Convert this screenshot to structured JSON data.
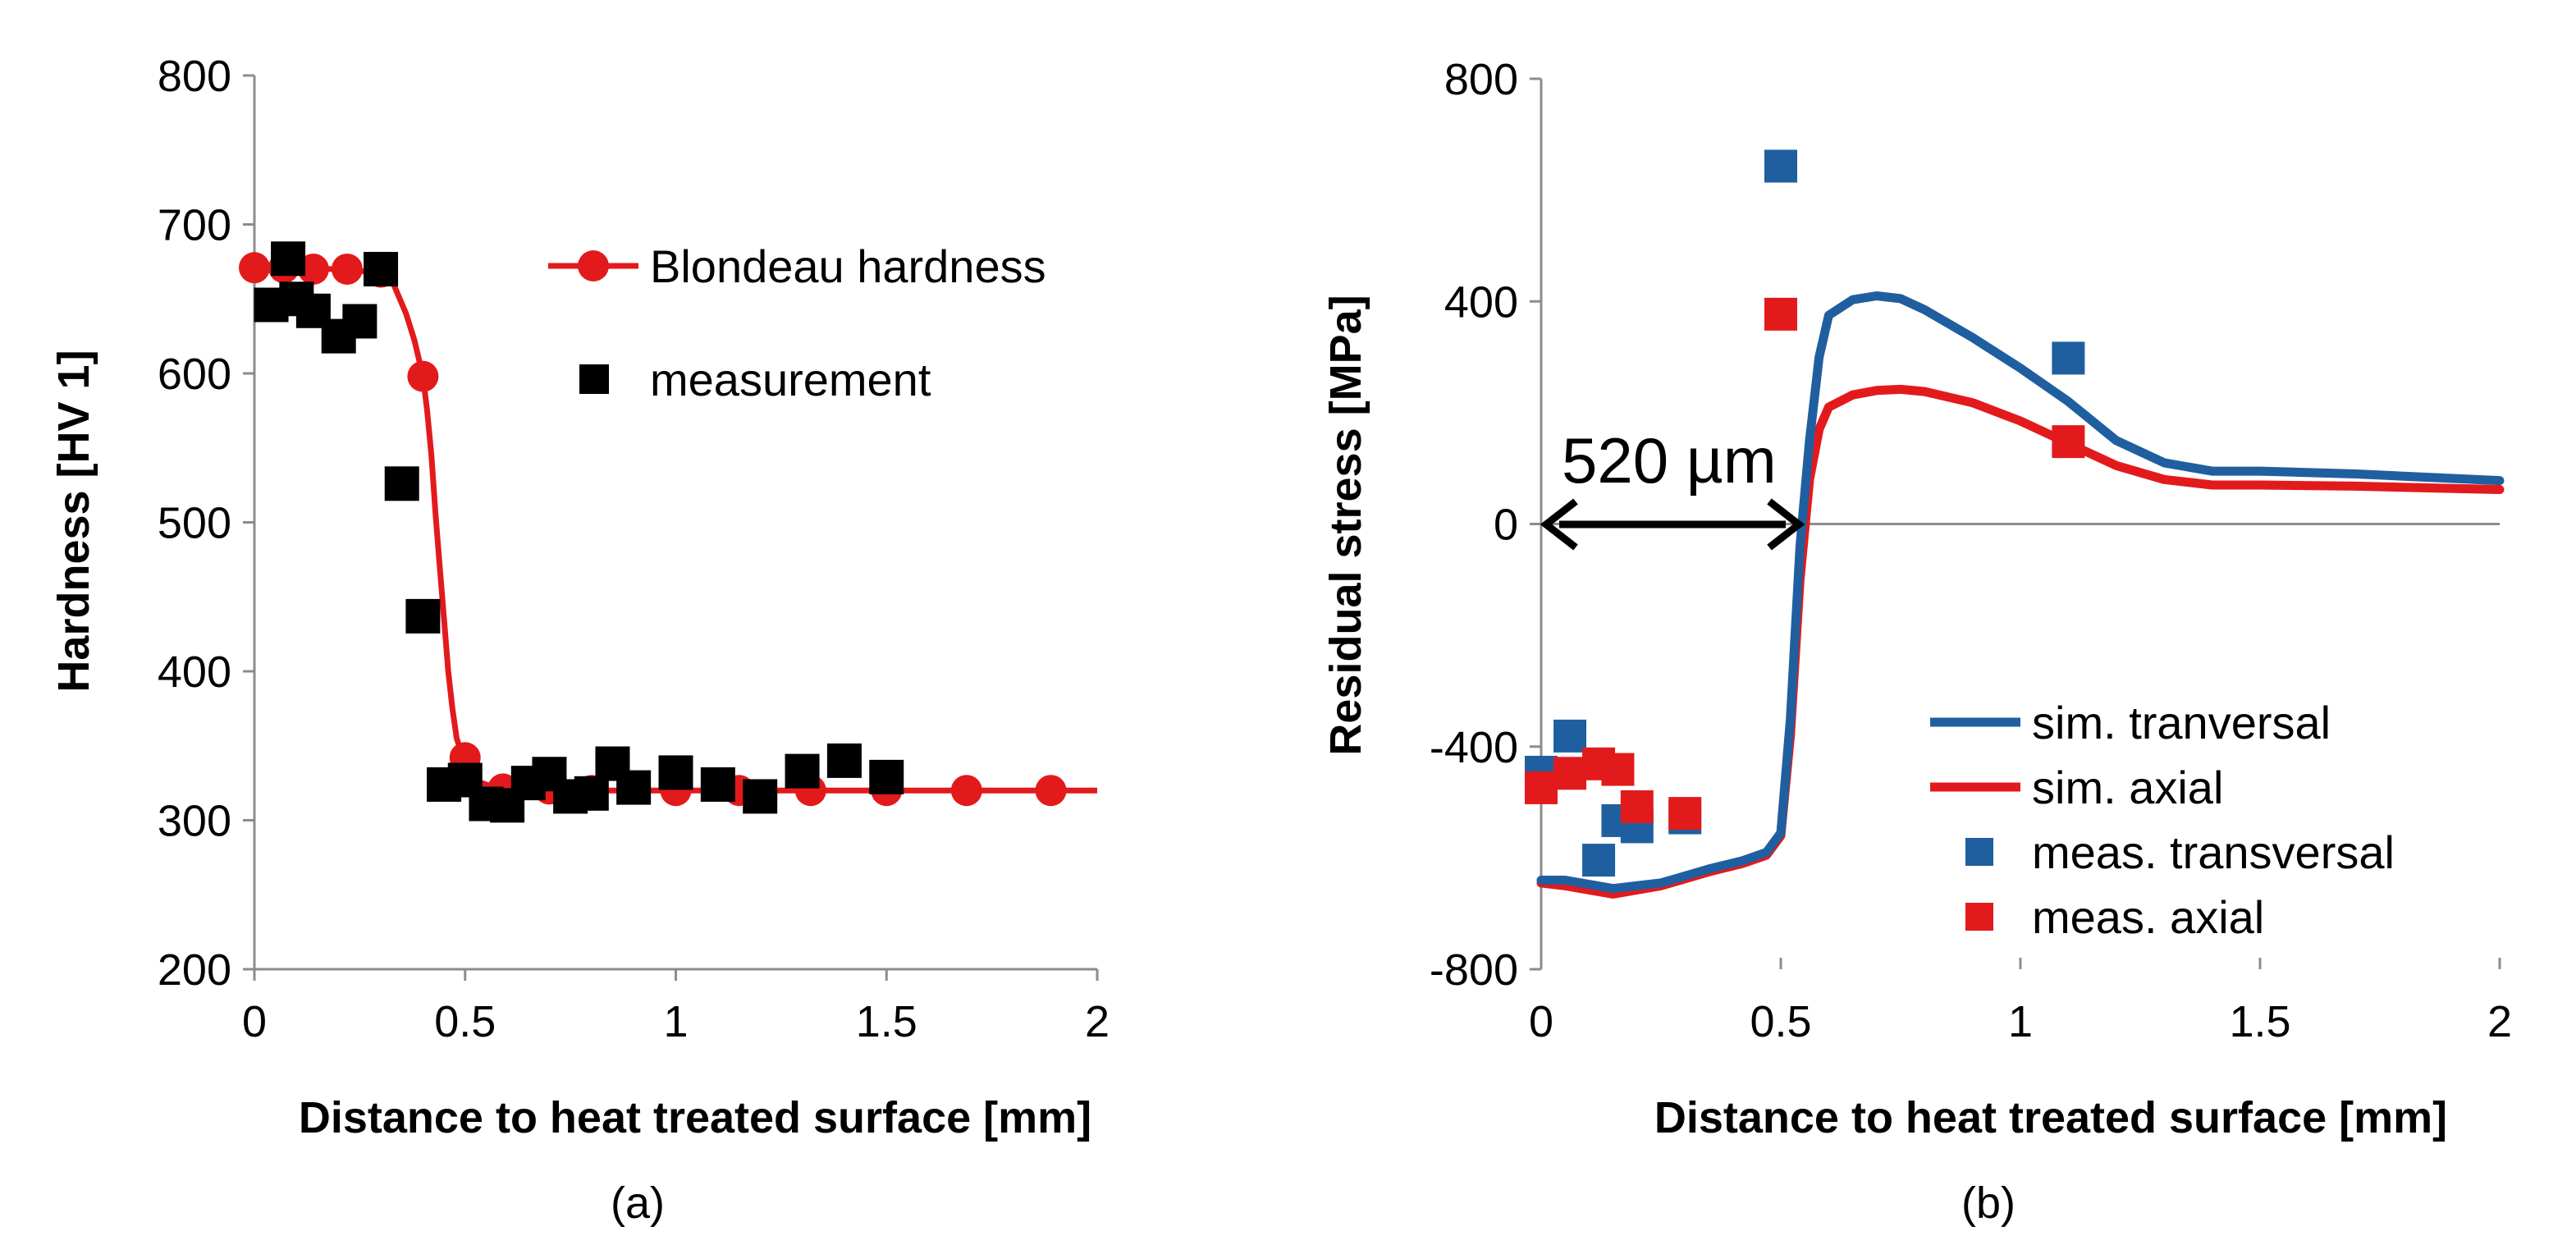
{
  "chart_data": [
    {
      "type": "line",
      "panel_label": "(a)",
      "xlabel": "Distance to heat treated surface [mm]",
      "ylabel": "Hardness [HV 1]",
      "xlim": [
        0,
        2
      ],
      "ylim": [
        200,
        800
      ],
      "xticks": [
        "0",
        "0.5",
        "1",
        "1.5",
        "2"
      ],
      "yticks": [
        "200",
        "300",
        "400",
        "500",
        "600",
        "700",
        "800"
      ],
      "legend_position": "top-right",
      "colors": {
        "curve": "#e31a1c",
        "markers": "#000000"
      },
      "series": [
        {
          "name": "Blondeau hardness",
          "kind": "line-markers",
          "curve": {
            "x": [
              0,
              0.2,
              0.28,
              0.33,
              0.36,
              0.38,
              0.4,
              0.41,
              0.42,
              0.43,
              0.44,
              0.45,
              0.46,
              0.47,
              0.48,
              0.5,
              0.53,
              0.58,
              0.65,
              0.8,
              2.0
            ],
            "y": [
              671,
              670,
              668,
              660,
              640,
              622,
              598,
              575,
              545,
              505,
              470,
              435,
              400,
              375,
              355,
              338,
              326,
              321,
              320,
              320,
              320
            ]
          },
          "markers": {
            "x": [
              0,
              0.07,
              0.14,
              0.22,
              0.3,
              0.4,
              0.5,
              0.59,
              0.7,
              0.8,
              1.0,
              1.15,
              1.32,
              1.5,
              1.69,
              1.89
            ],
            "y": [
              671,
              671,
              670,
              670,
              668,
              598,
              342,
              321,
              321,
              320,
              320,
              320,
              320,
              320,
              320,
              320
            ]
          }
        },
        {
          "name": "measurement",
          "kind": "markers",
          "x": [
            0.04,
            0.08,
            0.1,
            0.14,
            0.2,
            0.25,
            0.3,
            0.35,
            0.4,
            0.45,
            0.5,
            0.55,
            0.6,
            0.65,
            0.7,
            0.75,
            0.8,
            0.85,
            0.9,
            1.0,
            1.1,
            1.2,
            1.3,
            1.4,
            1.5
          ],
          "y": [
            646,
            677,
            650,
            642,
            625,
            635,
            670,
            526,
            437,
            324,
            327,
            311,
            310,
            325,
            331,
            316,
            318,
            338,
            322,
            332,
            324,
            316,
            333,
            340,
            329
          ]
        }
      ]
    },
    {
      "type": "line",
      "panel_label": "(b)",
      "xlabel": "Distance to heat treated surface [mm]",
      "ylabel": "Residual stress [MPa]",
      "xlim": [
        0,
        2
      ],
      "ylim": [
        -800,
        800
      ],
      "xticks": [
        "0",
        "0.5",
        "1",
        "1.5",
        "2"
      ],
      "yticks": [
        "-800",
        "-400",
        "0",
        "400",
        "800"
      ],
      "legend_position": "bottom-right",
      "annotation": {
        "text": "520 µm",
        "from_x": 0,
        "to_x": 0.55,
        "y": 0
      },
      "colors": {
        "blue": "#1f5fa0",
        "red": "#e31a1c"
      },
      "series": [
        {
          "name": "sim. tranversal",
          "kind": "line",
          "x": [
            0,
            0.05,
            0.15,
            0.25,
            0.35,
            0.42,
            0.47,
            0.5,
            0.52,
            0.54,
            0.56,
            0.58,
            0.6,
            0.65,
            0.7,
            0.75,
            0.8,
            0.9,
            1.0,
            1.1,
            1.2,
            1.3,
            1.4,
            1.5,
            1.7,
            2.0
          ],
          "y": [
            -640,
            -640,
            -655,
            -645,
            -620,
            -605,
            -590,
            -555,
            -350,
            -40,
            150,
            300,
            375,
            403,
            410,
            405,
            385,
            335,
            280,
            220,
            150,
            110,
            95,
            95,
            90,
            78
          ]
        },
        {
          "name": "sim. axial",
          "kind": "line",
          "x": [
            0,
            0.05,
            0.15,
            0.25,
            0.35,
            0.42,
            0.47,
            0.5,
            0.52,
            0.54,
            0.56,
            0.58,
            0.6,
            0.65,
            0.7,
            0.75,
            0.8,
            0.9,
            1.0,
            1.1,
            1.2,
            1.3,
            1.4,
            1.5,
            1.7,
            2.0
          ],
          "y": [
            -645,
            -650,
            -665,
            -650,
            -625,
            -610,
            -595,
            -560,
            -380,
            -100,
            80,
            170,
            210,
            232,
            240,
            242,
            238,
            218,
            185,
            145,
            105,
            80,
            70,
            70,
            68,
            62
          ]
        },
        {
          "name": "meas. transversal",
          "kind": "markers",
          "x": [
            0,
            0.06,
            0.12,
            0.16,
            0.2,
            0.3,
            0.5,
            1.1
          ],
          "y": [
            -446,
            -381,
            -604,
            -533,
            -544,
            -528,
            643,
            298
          ]
        },
        {
          "name": "meas. axial",
          "kind": "markers",
          "x": [
            0,
            0.06,
            0.12,
            0.16,
            0.2,
            0.3,
            0.5,
            1.1
          ],
          "y": [
            -474,
            -448,
            -431,
            -441,
            -508,
            -520,
            377,
            148
          ]
        }
      ]
    }
  ]
}
